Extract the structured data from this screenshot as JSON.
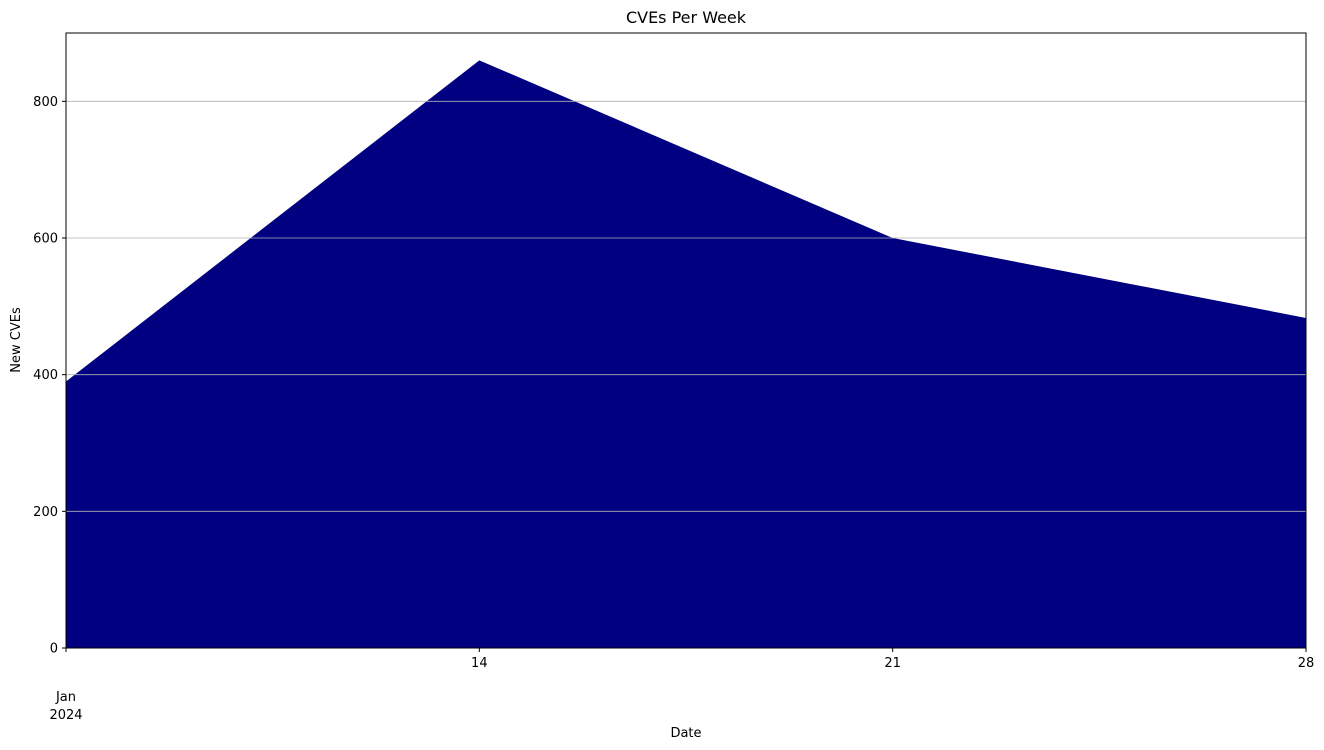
{
  "chart_data": {
    "type": "area",
    "title": "CVEs Per Week",
    "xlabel": "Date",
    "ylabel": "New CVEs",
    "x": [
      "2024-01-07",
      "2024-01-14",
      "2024-01-21",
      "2024-01-28"
    ],
    "series": [
      {
        "values": [
          390,
          860,
          600,
          483
        ],
        "color": "#000080"
      }
    ],
    "xlim": [
      "2024-01-07",
      "2024-01-28"
    ],
    "ylim": [
      0,
      900
    ],
    "x_ticks": [
      {
        "date": "2024-01-07",
        "label": "Jan",
        "sublabel": "2024"
      },
      {
        "date": "2024-01-14",
        "label": "14"
      },
      {
        "date": "2024-01-21",
        "label": "21"
      },
      {
        "date": "2024-01-28",
        "label": "28"
      }
    ],
    "y_ticks": [
      0,
      200,
      400,
      600,
      800
    ],
    "grid": "y",
    "legend": "none"
  }
}
